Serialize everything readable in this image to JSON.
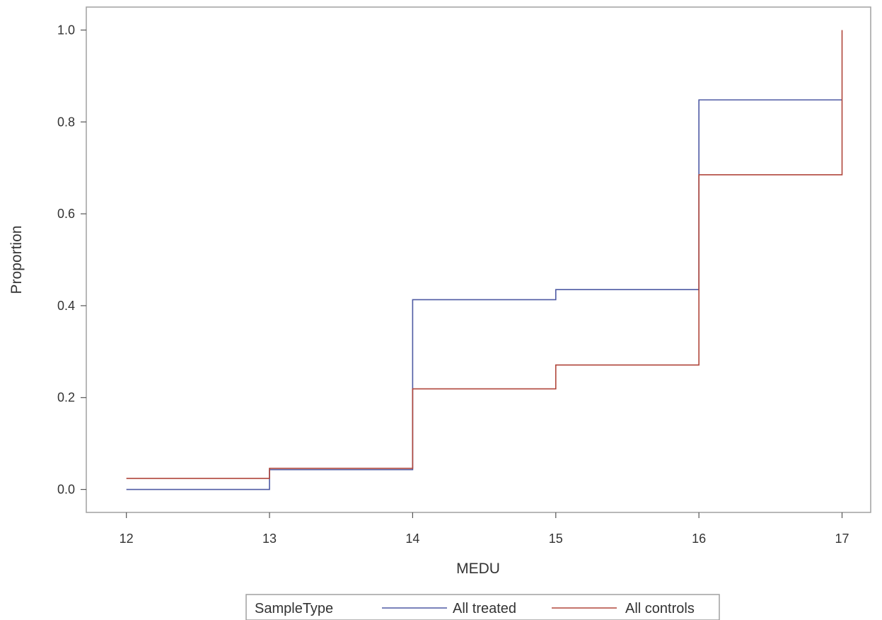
{
  "chart_data": {
    "type": "line",
    "step": "post",
    "xlabel": "MEDU",
    "ylabel": "Proportion",
    "xlim": [
      11.72,
      17.2
    ],
    "ylim": [
      -0.05,
      1.05
    ],
    "xticks": [
      12,
      13,
      14,
      15,
      16,
      17
    ],
    "yticks": [
      "0.0",
      "0.2",
      "0.4",
      "0.6",
      "0.8",
      "1.0"
    ],
    "grid": false,
    "legend": {
      "placement": "bottom",
      "title": "SampleType"
    },
    "x": [
      12,
      13,
      14,
      15,
      16,
      17
    ],
    "series": [
      {
        "name": "All treated",
        "color": "#4e5aa3",
        "values": [
          0.0,
          0.043,
          0.413,
          0.435,
          0.848,
          0.848
        ]
      },
      {
        "name": "All controls",
        "color": "#b0463b",
        "values": [
          0.024,
          0.046,
          0.219,
          0.271,
          0.685,
          1.0
        ]
      }
    ]
  }
}
